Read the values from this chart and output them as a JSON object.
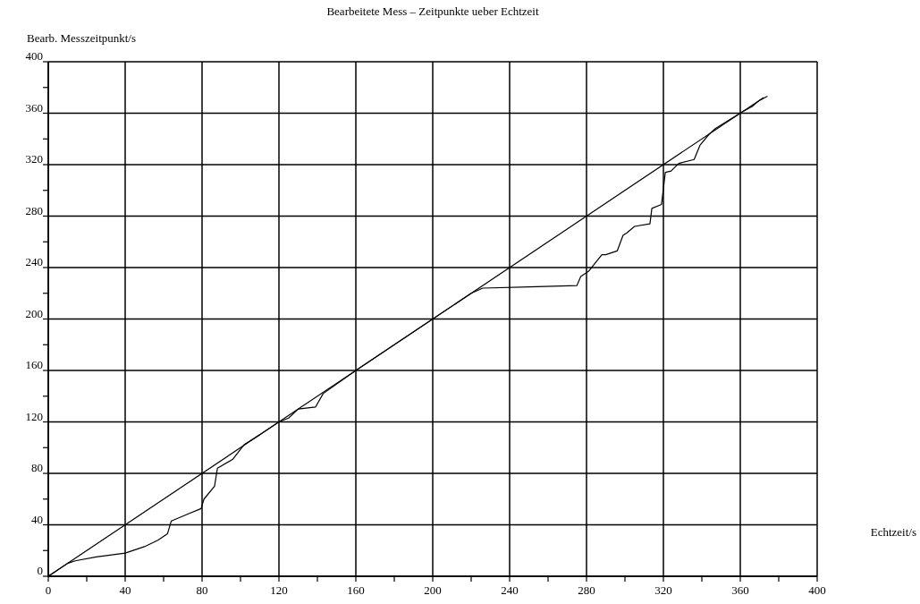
{
  "chart_data": {
    "type": "line",
    "title": "Bearbeitete Mess – Zeitpunkte ueber Echtzeit",
    "xlabel": "Echtzeit/s",
    "ylabel": "Bearb. Messzeitpunkt/s",
    "xlim": [
      0,
      400
    ],
    "ylim": [
      0,
      400
    ],
    "xticks": [
      0,
      {
        "value": 20,
        "label": null
      },
      40,
      {
        "value": 60,
        "label": null
      },
      80,
      {
        "value": 100,
        "label": null
      },
      120,
      {
        "value": 140,
        "label": null
      },
      160,
      {
        "value": 180,
        "label": null
      },
      200,
      {
        "value": 220,
        "label": null
      },
      240,
      {
        "value": 260,
        "label": null
      },
      280,
      {
        "value": 300,
        "label": null
      },
      320,
      {
        "value": 340,
        "label": null
      },
      360,
      {
        "value": 380,
        "label": null
      },
      400
    ],
    "yticks": [
      0,
      {
        "value": 20,
        "label": null
      },
      40,
      {
        "value": 60,
        "label": null
      },
      80,
      {
        "value": 100,
        "label": null
      },
      120,
      {
        "value": 140,
        "label": null
      },
      160,
      {
        "value": 180,
        "label": null
      },
      200,
      {
        "value": 220,
        "label": null
      },
      240,
      {
        "value": 260,
        "label": null
      },
      280,
      {
        "value": 300,
        "label": null
      },
      320,
      {
        "value": 340,
        "label": null
      },
      360,
      {
        "value": 380,
        "label": null
      },
      400
    ],
    "grid": true,
    "marker": "none",
    "line_style": "solid",
    "series": [
      {
        "color": "#000000",
        "x": [
          0,
          372
        ],
        "values": [
          0,
          372
        ]
      },
      {
        "color": "#000000",
        "x": [
          0,
          10,
          14,
          25,
          40,
          50,
          57,
          62,
          64,
          72,
          79.5,
          81,
          86.5,
          88,
          96,
          102,
          110,
          120,
          125,
          130,
          139,
          143,
          160,
          200,
          220,
          226,
          250,
          275,
          277,
          281,
          288,
          290,
          296,
          299,
          301,
          305,
          313,
          314,
          319,
          321,
          324,
          328,
          336,
          339,
          344,
          347,
          361,
          366,
          370,
          374
        ],
        "values": [
          0,
          10,
          12,
          15,
          18,
          23,
          28,
          33,
          43,
          48,
          52.6,
          60,
          70,
          84,
          91,
          102.5,
          110,
          120,
          123,
          130,
          131.5,
          142,
          160,
          200,
          220,
          224,
          225,
          226,
          233,
          237,
          250,
          250,
          253,
          265,
          267,
          272,
          274,
          286,
          289,
          314,
          315,
          321,
          324,
          335,
          344,
          348,
          361,
          365,
          370,
          373
        ]
      }
    ]
  }
}
